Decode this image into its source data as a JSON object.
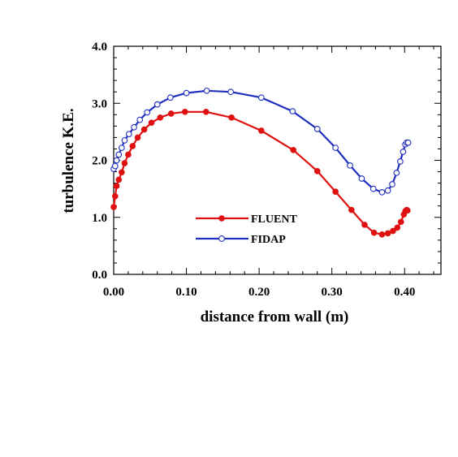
{
  "chart_data": {
    "type": "line",
    "xlabel": "distance from wall (m)",
    "ylabel": "turbulence K.E.",
    "xlim": [
      0,
      0.45
    ],
    "ylim": [
      0,
      4
    ],
    "x_ticks": [
      "0.00",
      "0.10",
      "0.20",
      "0.30",
      "0.40"
    ],
    "y_ticks": [
      "0.0",
      "1.0",
      "2.0",
      "3.0",
      "4.0"
    ],
    "grid": false,
    "legend_position": "lower-center",
    "series": [
      {
        "name": "FLUENT",
        "color": "#e01010",
        "marker": "filled-circle",
        "x": [
          0.0,
          0.002,
          0.004,
          0.007,
          0.011,
          0.015,
          0.02,
          0.026,
          0.033,
          0.042,
          0.052,
          0.064,
          0.079,
          0.098,
          0.127,
          0.162,
          0.203,
          0.247,
          0.28,
          0.305,
          0.327,
          0.345,
          0.358,
          0.369,
          0.377,
          0.384,
          0.39,
          0.395,
          0.399,
          0.401,
          0.403,
          0.404
        ],
        "y": [
          1.18,
          1.37,
          1.55,
          1.66,
          1.79,
          1.95,
          2.1,
          2.25,
          2.4,
          2.54,
          2.66,
          2.75,
          2.82,
          2.85,
          2.85,
          2.75,
          2.52,
          2.18,
          1.81,
          1.45,
          1.13,
          0.87,
          0.73,
          0.7,
          0.72,
          0.76,
          0.82,
          0.92,
          1.05,
          1.11,
          1.13,
          1.12
        ]
      },
      {
        "name": "FIDAP",
        "color": "#1f2fbf",
        "marker": "open-circle",
        "x": [
          0.0,
          0.002,
          0.004,
          0.007,
          0.011,
          0.015,
          0.021,
          0.028,
          0.036,
          0.046,
          0.06,
          0.078,
          0.1,
          0.128,
          0.161,
          0.203,
          0.246,
          0.28,
          0.305,
          0.325,
          0.341,
          0.357,
          0.369,
          0.377,
          0.383,
          0.389,
          0.394,
          0.398,
          0.401,
          0.403,
          0.405
        ],
        "y": [
          1.85,
          1.9,
          2.0,
          2.1,
          2.22,
          2.35,
          2.46,
          2.58,
          2.71,
          2.84,
          2.98,
          3.1,
          3.18,
          3.22,
          3.2,
          3.1,
          2.86,
          2.55,
          2.22,
          1.91,
          1.68,
          1.5,
          1.44,
          1.47,
          1.58,
          1.78,
          1.98,
          2.15,
          2.28,
          2.31,
          2.31
        ]
      }
    ]
  }
}
